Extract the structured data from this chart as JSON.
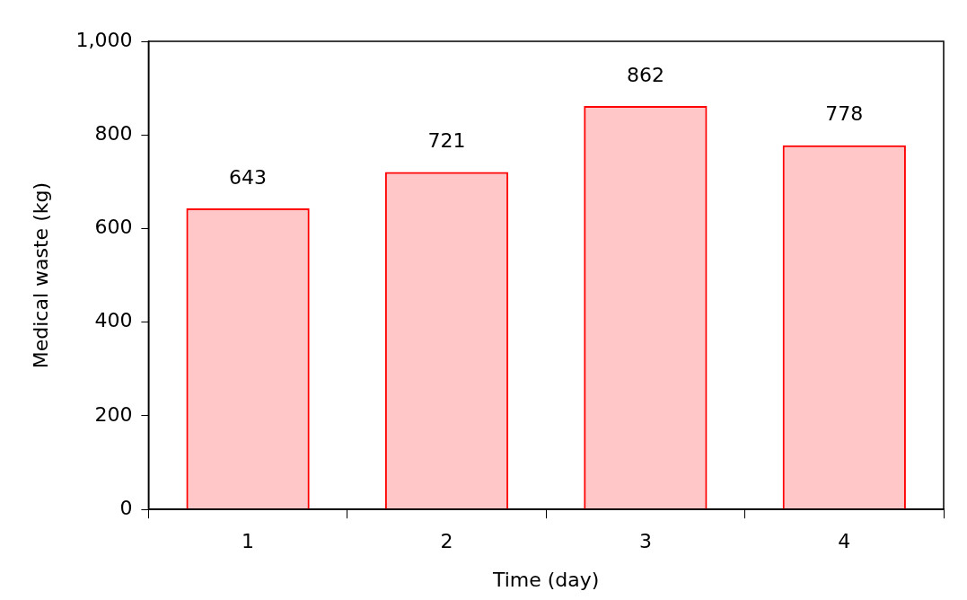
{
  "chart_data": {
    "type": "bar",
    "xlabel": "Time (day)",
    "ylabel": "Medical waste (kg)",
    "categories": [
      "1",
      "2",
      "3",
      "4"
    ],
    "values": [
      643,
      721,
      862,
      778
    ],
    "color": "#ff0000",
    "ylim": [
      0,
      1000
    ],
    "yticks": [
      0,
      {
        "value": 200,
        "label": "200"
      },
      {
        "value": 400,
        "label": "400"
      },
      {
        "value": 600,
        "label": "600"
      },
      {
        "value": 800,
        "label": "800"
      },
      {
        "value": 1000,
        "label": "1,000"
      }
    ],
    "data_labels": true,
    "grid": false,
    "legend": false
  }
}
